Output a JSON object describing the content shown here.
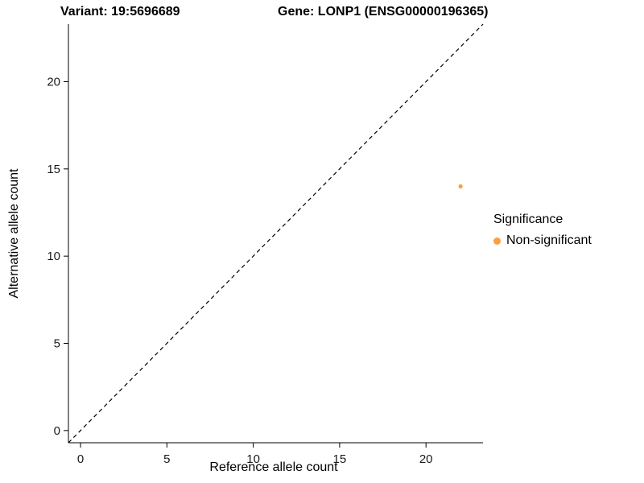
{
  "chart_data": {
    "type": "scatter",
    "title_left": "Variant: 19:5696689",
    "title_right": "Gene: LONP1 (ENSG00000196365)",
    "xlabel": "Reference allele count",
    "ylabel": "Alternative allele count",
    "xlim": [
      -0.7,
      23.3
    ],
    "ylim": [
      -0.7,
      23.3
    ],
    "xticks": [
      0,
      5,
      10,
      15,
      20
    ],
    "yticks": [
      0,
      5,
      10,
      15,
      20
    ],
    "grid": false,
    "identity_line": {
      "style": "dashed",
      "color": "#000000",
      "from": [
        -0.7,
        -0.7
      ],
      "to": [
        23.3,
        23.3
      ]
    },
    "series": [
      {
        "name": "Non-significant",
        "color": "#F9A03F",
        "points": [
          [
            22,
            14
          ]
        ]
      }
    ],
    "legend": {
      "title": "Significance",
      "position": "right",
      "entries": [
        {
          "label": "Non-significant",
          "color": "#F9A03F"
        }
      ]
    }
  }
}
